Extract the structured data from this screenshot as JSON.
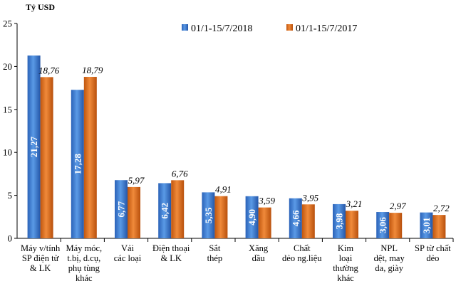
{
  "chart_data": {
    "type": "bar",
    "ylabel": "Tỷ USD",
    "ylim": [
      0,
      25
    ],
    "yticks": [
      0,
      5,
      10,
      15,
      20,
      25
    ],
    "legend_position": "top-right",
    "categories": [
      [
        "Máy v/tính",
        "SP điện tử",
        "& LK"
      ],
      [
        "Máy móc,",
        "t.bị, d.cụ,",
        "phụ tùng",
        "khác"
      ],
      [
        "Vải",
        "các loại"
      ],
      [
        "Điện thoại",
        "& LK"
      ],
      [
        "Sắt",
        "thép"
      ],
      [
        "Xăng",
        "dầu"
      ],
      [
        "Chất",
        "dẻo ng.liệu"
      ],
      [
        "Kim",
        "loại",
        "thường",
        "khác"
      ],
      [
        "NPL",
        "dệt, may",
        "da, giày"
      ],
      [
        "SP từ chất",
        "dẻo"
      ]
    ],
    "series": [
      {
        "name": "01/1-15/7/2018",
        "color": "#3a7fd5",
        "values": [
          21.27,
          17.28,
          6.77,
          6.42,
          5.35,
          4.9,
          4.66,
          3.98,
          3.06,
          3.01
        ],
        "labels": [
          "21,27",
          "17,28",
          "6,77",
          "6,42",
          "5,35",
          "4,90",
          "4,66",
          "3,98",
          "3,06",
          "3,01"
        ]
      },
      {
        "name": "01/1-15/7/2017",
        "color": "#e0701e",
        "values": [
          18.76,
          18.79,
          5.97,
          6.76,
          4.91,
          3.59,
          3.95,
          3.21,
          2.97,
          2.72
        ],
        "labels": [
          "18,76",
          "18,79",
          "5,97",
          "6,76",
          "4,91",
          "3,59",
          "3,95",
          "3,21",
          "2,97",
          "2,72"
        ]
      }
    ]
  }
}
